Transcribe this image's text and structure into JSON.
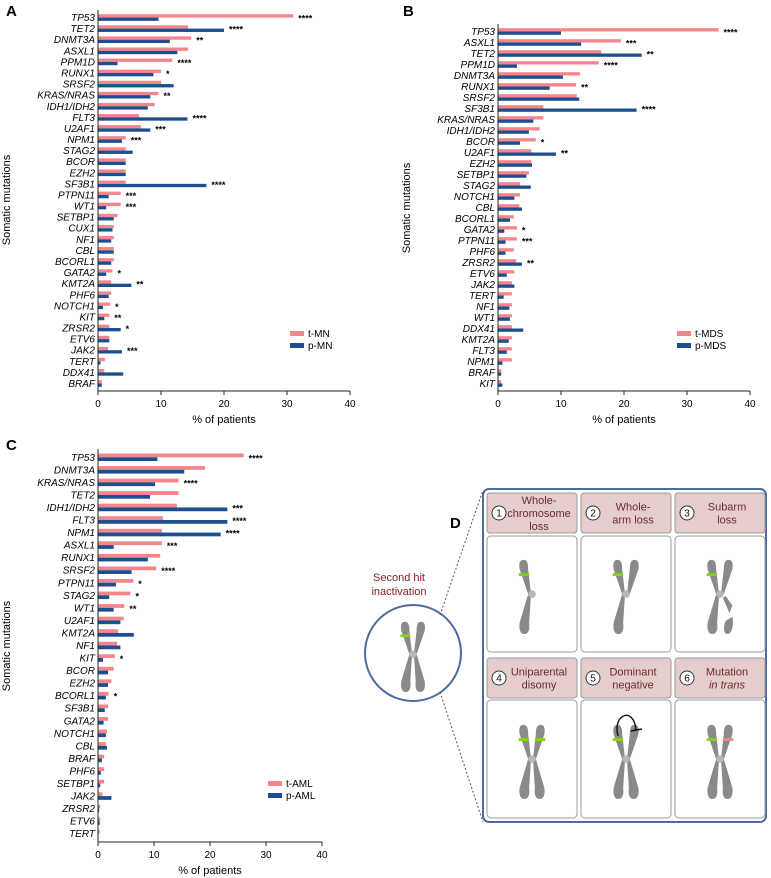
{
  "chart_data": [
    {
      "type": "bar",
      "orientation": "horizontal",
      "panel": "A",
      "categories": [
        "TP53",
        "TET2",
        "DNMT3A",
        "ASXL1",
        "PPM1D",
        "RUNX1",
        "SRSF2",
        "KRAS/NRAS",
        "IDH1/IDH2",
        "FLT3",
        "U2AF1",
        "NPM1",
        "STAG2",
        "BCOR",
        "EZH2",
        "SF3B1",
        "PTPN11",
        "WT1",
        "SETBP1",
        "CUX1",
        "NF1",
        "CBL",
        "BCORL1",
        "GATA2",
        "KMT2A",
        "PHF6",
        "NOTCH1",
        "KIT",
        "ZRSR2",
        "ETV6",
        "JAK2",
        "TERT",
        "DDX41",
        "BRAF"
      ],
      "series": [
        {
          "name": "t-MN",
          "color": "#f4858a",
          "values": [
            31,
            14.3,
            14.8,
            14.3,
            11.8,
            10.0,
            10.0,
            9.6,
            9.0,
            6.5,
            6.8,
            4.4,
            4.4,
            4.4,
            4.4,
            4.4,
            3.6,
            3.6,
            3.1,
            2.5,
            2.5,
            2.5,
            2.5,
            2.3,
            2.1,
            2.1,
            1.9,
            1.8,
            1.8,
            1.8,
            1.6,
            1.1,
            1.0,
            0.6
          ]
        },
        {
          "name": "p-MN",
          "color": "#1b4f91",
          "values": [
            9.6,
            20,
            11.4,
            12.6,
            3.1,
            8.8,
            12,
            8.3,
            7.9,
            14.2,
            8.3,
            3.8,
            5.5,
            4.4,
            4.4,
            17.2,
            1.7,
            1.3,
            2.5,
            2.3,
            2.1,
            2.5,
            2.1,
            1.3,
            5.3,
            1.7,
            0.8,
            1.0,
            3.6,
            1.8,
            3.8,
            0.4,
            4.0,
            0.6
          ]
        }
      ],
      "significance": [
        "****",
        "****",
        "**",
        "",
        "****",
        "*",
        "",
        "**",
        "",
        "****",
        "***",
        "***",
        "",
        "",
        "",
        "****",
        "***",
        "***",
        "",
        "",
        "",
        "",
        "",
        "*",
        "**",
        "",
        "*",
        "**",
        "*",
        "",
        "***",
        "",
        "",
        ""
      ],
      "xlabel": "% of patients",
      "ylabel": "Somatic mutations",
      "xlim": [
        0,
        40
      ],
      "xticks": [
        "0",
        "10",
        "20",
        "30",
        "40"
      ],
      "legend": "bottom-right"
    },
    {
      "type": "bar",
      "orientation": "horizontal",
      "panel": "B",
      "categories": [
        "TP53",
        "ASXL1",
        "TET2",
        "PPM1D",
        "DNMT3A",
        "RUNX1",
        "SRSF2",
        "SF3B1",
        "KRAS/NRAS",
        "IDH1/IDH2",
        "BCOR",
        "U2AF1",
        "EZH2",
        "SETBP1",
        "STAG2",
        "NOTCH1",
        "CBL",
        "BCORL1",
        "GATA2",
        "PTPN11",
        "PHF6",
        "ZRSR2",
        "ETV6",
        "JAK2",
        "TERT",
        "NF1",
        "WT1",
        "DDX41",
        "KMT2A",
        "FLT3",
        "NPM1",
        "BRAF",
        "KIT"
      ],
      "series": [
        {
          "name": "t-MDS",
          "color": "#f4858a",
          "values": [
            35,
            19.5,
            16.4,
            16.0,
            13.0,
            12.4,
            12.5,
            7.2,
            7.2,
            6.6,
            6.0,
            5.3,
            5.3,
            4.9,
            3.5,
            3.5,
            3.4,
            2.5,
            3.0,
            3.0,
            2.5,
            2.9,
            2.6,
            2.2,
            2.2,
            2.2,
            2.2,
            2.2,
            2.2,
            2.2,
            2.2,
            0.5,
            0.5
          ]
        },
        {
          "name": "p-MDS",
          "color": "#1b4f91",
          "values": [
            10,
            13.2,
            22.8,
            3.0,
            10.3,
            8.2,
            12.9,
            22.0,
            5.6,
            4.9,
            3.5,
            9.2,
            5.4,
            4.5,
            5.2,
            2.6,
            3.8,
            1.9,
            1.0,
            1.2,
            1.2,
            3.8,
            1.4,
            2.6,
            0.9,
            1.8,
            1.9,
            4.0,
            1.7,
            1.4,
            0.7,
            0.5,
            0.7
          ]
        }
      ],
      "significance": [
        "****",
        "***",
        "**",
        "****",
        "",
        "**",
        "",
        "****",
        "",
        "",
        "*",
        "**",
        "",
        "",
        "",
        "",
        "",
        "",
        "*",
        "***",
        "",
        "**",
        "",
        "",
        "",
        "",
        "",
        "",
        "",
        "",
        "",
        "",
        ""
      ],
      "xlabel": "% of patients",
      "ylabel": "Somatic mutations",
      "xlim": [
        0,
        40
      ],
      "xticks": [
        "0",
        "10",
        "20",
        "30",
        "40"
      ],
      "legend": "bottom-right"
    },
    {
      "type": "bar",
      "orientation": "horizontal",
      "panel": "C",
      "categories": [
        "TP53",
        "DNMT3A",
        "KRAS/NRAS",
        "TET2",
        "IDH1/IDH2",
        "FLT3",
        "NPM1",
        "ASXL1",
        "RUNX1",
        "SRSF2",
        "PTPN11",
        "STAG2",
        "WT1",
        "U2AF1",
        "KMT2A",
        "NF1",
        "KIT",
        "BCOR",
        "EZH2",
        "BCORL1",
        "SF3B1",
        "GATA2",
        "NOTCH1",
        "CBL",
        "BRAF",
        "PHF6",
        "SETBP1",
        "JAK2",
        "ZRSR2",
        "ETV6",
        "TERT"
      ],
      "series": [
        {
          "name": "t-AML",
          "color": "#f4858a",
          "values": [
            26,
            19.1,
            14.4,
            14.4,
            14.1,
            11.6,
            11.4,
            11.4,
            11.1,
            10.4,
            6.3,
            5.8,
            4.7,
            4.6,
            3.6,
            3.4,
            3.0,
            2.8,
            2.4,
            1.9,
            1.8,
            1.8,
            1.6,
            1.4,
            1.1,
            1.1,
            1.1,
            0.8,
            0.4,
            0.4,
            0.3
          ]
        },
        {
          "name": "p-AML",
          "color": "#1b4f91",
          "values": [
            10.6,
            15.4,
            10.2,
            9.3,
            23.1,
            23.1,
            21.9,
            2.8,
            8.9,
            6.0,
            3.2,
            2.0,
            2.8,
            4.0,
            6.4,
            4.0,
            0.9,
            1.8,
            1.8,
            1.4,
            1.2,
            1.0,
            1.4,
            1.6,
            0.7,
            0.5,
            0.4,
            2.4,
            0.2,
            0.3,
            0.1
          ]
        }
      ],
      "significance": [
        "****",
        "",
        "****",
        "",
        "***",
        "****",
        "****",
        "***",
        "",
        "****",
        "*",
        "*",
        "**",
        "",
        "",
        "",
        "*",
        "",
        "",
        "*",
        "",
        "",
        "",
        "",
        "",
        "",
        "",
        "",
        "",
        "",
        ""
      ],
      "xlabel": "% of patients",
      "ylabel": "Somatic mutations",
      "xlim": [
        0,
        40
      ],
      "xticks": [
        "0",
        "10",
        "20",
        "30",
        "40"
      ],
      "legend": "bottom-right"
    }
  ],
  "panels": {
    "a": "A",
    "b": "B",
    "c": "C",
    "d": "D"
  },
  "diagram": {
    "side_label_line1": "Second hit",
    "side_label_line2": "inactivation",
    "mechanisms": [
      {
        "num": "1",
        "line1": "Whole-",
        "line2": "chromosome",
        "line3": "loss"
      },
      {
        "num": "2",
        "line1": "Whole-",
        "line2": "arm loss",
        "line3": ""
      },
      {
        "num": "3",
        "line1": "Subarm",
        "line2": "loss",
        "line3": ""
      },
      {
        "num": "4",
        "line1": "Uniparental",
        "line2": "disomy",
        "line3": ""
      },
      {
        "num": "5",
        "line1": "Dominant",
        "line2": "negative",
        "line3": ""
      },
      {
        "num": "6",
        "line1": "Mutation",
        "line2": "in trans",
        "line3": ""
      }
    ],
    "colors": {
      "box_fill": "#e6cdcd",
      "border": "#4c6b9e",
      "chromosome": "#8a8a8a",
      "normal_mark": "#7ed321",
      "mutant_mark": "#f4858a",
      "label": "#8b1a1a"
    }
  }
}
